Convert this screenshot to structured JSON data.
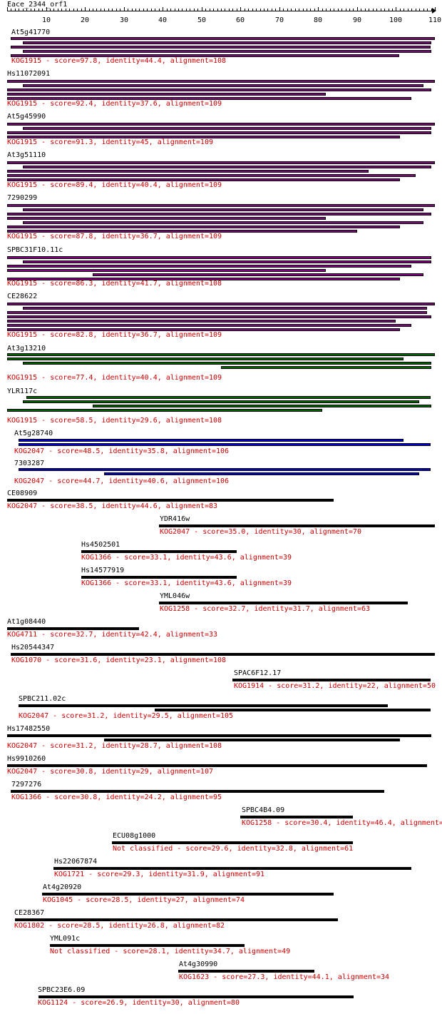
{
  "query": "Eace_2344_orf1",
  "ruler": {
    "min": 0,
    "max": 110,
    "tick_labels": [
      "10",
      "20",
      "30",
      "40",
      "50",
      "60",
      "70",
      "80",
      "90",
      "100",
      "110"
    ]
  },
  "colors": {
    "purple": "#800080",
    "green": "#006400",
    "blue": "#0000cc",
    "black": "#000000",
    "caption": "#cc0000"
  },
  "hits": [
    {
      "name": "At5g41770",
      "caption": "KOG1915 - score=97.8, identity=44.4, alignment=108",
      "color": "purple",
      "nbars": 5
    },
    {
      "name": "Hs11072091",
      "caption": "KOG1915 - score=92.4, identity=37.6, alignment=109",
      "color": "purple",
      "nbars": 5
    },
    {
      "name": "At5g45990",
      "caption": "KOG1915 - score=91.3, identity=45, alignment=109",
      "color": "purple",
      "nbars": 4
    },
    {
      "name": "At3g51110",
      "caption": "KOG1915 - score=89.4, identity=40.4, alignment=109",
      "color": "purple",
      "nbars": 5
    },
    {
      "name": "7290299",
      "caption": "KOG1915 - score=87.8, identity=36.7, alignment=109",
      "color": "purple",
      "nbars": 7
    },
    {
      "name": "SPBC31F10.11c",
      "caption": "KOG1915 - score=86.3, identity=41.7, alignment=108",
      "color": "purple",
      "nbars": 6
    },
    {
      "name": "CE28622",
      "caption": "KOG1915 - score=82.8, identity=36.7, alignment=109",
      "color": "purple",
      "nbars": 7
    },
    {
      "name": "At3g13210",
      "caption": "KOG1915 - score=77.4, identity=40.4, alignment=109",
      "color": "green",
      "nbars": 4
    },
    {
      "name": "YLR117c",
      "caption": "KOG1915 - score=58.5, identity=29.6, alignment=108",
      "color": "green",
      "nbars": 4
    },
    {
      "name": "At5g28740",
      "caption": "KOG2047 - score=48.5, identity=35.8, alignment=106",
      "color": "blue",
      "nbars": 2
    },
    {
      "name": "7303287",
      "caption": "KOG2047 - score=44.7, identity=40.6, alignment=106",
      "color": "blue",
      "nbars": 2
    },
    {
      "name": "CE08909",
      "caption": "KOG2047 - score=38.5, identity=44.6, alignment=83",
      "color": "black",
      "nbars": 1
    },
    {
      "name": "YDR416w",
      "caption": "KOG2047 - score=35.0, identity=30, alignment=70",
      "color": "black",
      "nbars": 1
    },
    {
      "name": "Hs4502501",
      "caption": "KOG1366 - score=33.1, identity=43.6, alignment=39",
      "color": "black",
      "nbars": 1
    },
    {
      "name": "Hs14577919",
      "caption": "KOG1366 - score=33.1, identity=43.6, alignment=39",
      "color": "black",
      "nbars": 1
    },
    {
      "name": "YML046w",
      "caption": "KOG1258 - score=32.7, identity=31.7, alignment=63",
      "color": "black",
      "nbars": 1
    },
    {
      "name": "At1g08440",
      "caption": "KOG4711 - score=32.7, identity=42.4, alignment=33",
      "color": "black",
      "nbars": 1
    },
    {
      "name": "Hs20544347",
      "caption": "KOG1070 - score=31.6, identity=23.1, alignment=108",
      "color": "black",
      "nbars": 1
    },
    {
      "name": "SPAC6F12.17",
      "caption": "KOG1914 - score=31.2, identity=22, alignment=50",
      "color": "black",
      "nbars": 1
    },
    {
      "name": "SPBC211.02c",
      "caption": "KOG2047 - score=31.2, identity=29.5, alignment=105",
      "color": "black",
      "nbars": 2
    },
    {
      "name": "Hs17482550",
      "caption": "KOG2047 - score=31.2, identity=28.7, alignment=108",
      "color": "black",
      "nbars": 2
    },
    {
      "name": "Hs9910260",
      "caption": "KOG2047 - score=30.8, identity=29, alignment=107",
      "color": "black",
      "nbars": 1
    },
    {
      "name": "7297276",
      "caption": "KOG1366 - score=30.8, identity=24.2, alignment=95",
      "color": "black",
      "nbars": 1
    },
    {
      "name": "SPBC4B4.09",
      "caption": "KOG1258 - score=30.4, identity=46.4, alignment=",
      "color": "black",
      "nbars": 1
    },
    {
      "name": "ECU08g1000",
      "caption": "Not classified - score=29.6, identity=32.8, alignment=61",
      "color": "black",
      "nbars": 1
    },
    {
      "name": "Hs22067874",
      "caption": "KOG1721 - score=29.3, identity=31.9, alignment=91",
      "color": "black",
      "nbars": 1
    },
    {
      "name": "At4g20920",
      "caption": "KOG1045 - score=28.5, identity=27, alignment=74",
      "color": "black",
      "nbars": 1
    },
    {
      "name": "CE28367",
      "caption": "KOG1802 - score=28.5, identity=26.8, alignment=82",
      "color": "black",
      "nbars": 1
    },
    {
      "name": "YML091c",
      "caption": "Not classified - score=28.1, identity=34.7, alignment=49",
      "color": "black",
      "nbars": 1
    },
    {
      "name": "At4g30990",
      "caption": "KOG1623 - score=27.3, identity=44.1, alignment=34",
      "color": "black",
      "nbars": 1
    },
    {
      "name": "SPBC23E6.09",
      "caption": "KOG1124 - score=26.9, identity=30, alignment=80",
      "color": "black",
      "nbars": 1
    }
  ]
}
